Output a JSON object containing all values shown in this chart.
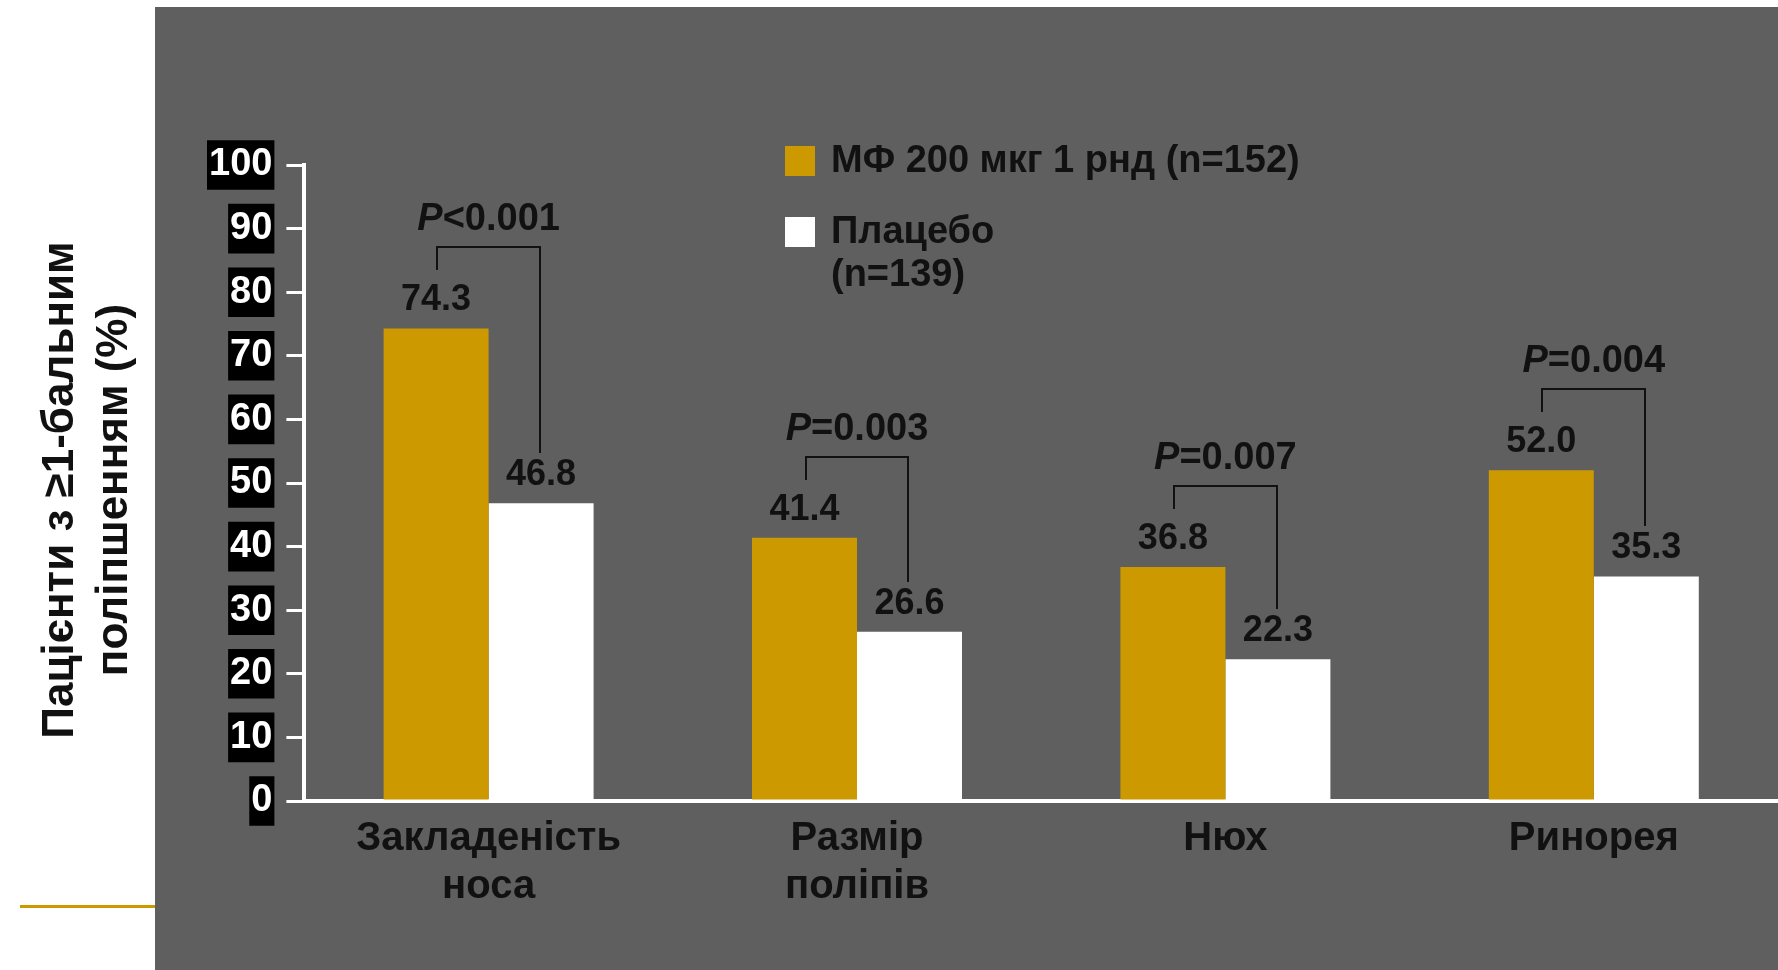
{
  "chart_data": {
    "type": "bar",
    "ylabel": "Пацієнти з ≥1-бальним поліпшенням (%)",
    "categories": [
      "Закладеність носа",
      "Размір поліпів",
      "Нюх",
      "Ринорея"
    ],
    "series": [
      {
        "name": "МФ 200 мкг 1 рнд (n=152)",
        "color": "#cc9900",
        "values": [
          74.3,
          41.4,
          36.8,
          52.0
        ],
        "value_labels": [
          "74.3",
          "41.4",
          "36.8",
          "52.0"
        ]
      },
      {
        "name": "Плацебо (n=139)",
        "color": "#ffffff",
        "values": [
          46.8,
          26.6,
          22.3,
          35.3
        ],
        "value_labels": [
          "46.8",
          "26.6",
          "22.3",
          "35.3"
        ]
      }
    ],
    "ylim": [
      0,
      100
    ],
    "yticks": [
      0,
      10,
      20,
      30,
      40,
      50,
      60,
      70,
      80,
      90,
      100
    ],
    "grid": false,
    "legend": "top",
    "annotations": [
      "P<0.001",
      "P=0.003",
      "P=0.007",
      "P=0.004"
    ]
  }
}
